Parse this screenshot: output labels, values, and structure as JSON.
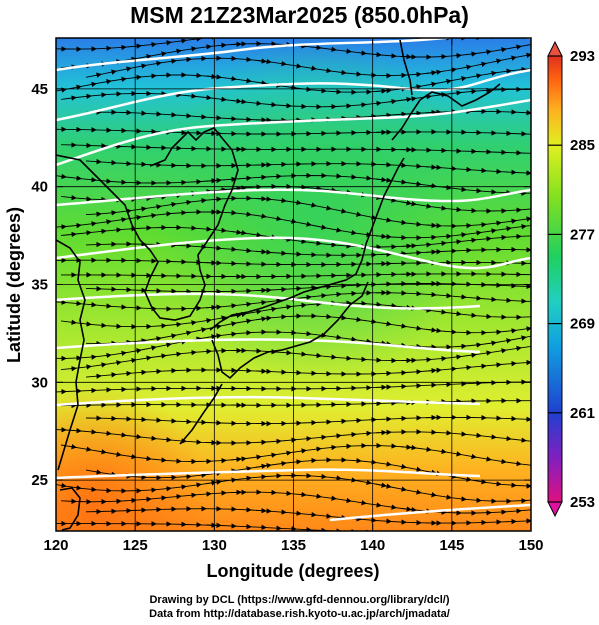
{
  "title": "MSM 21Z23Mar2025 (850.0hPa)",
  "map": {
    "x_axis_label": "Longitude (degrees)",
    "y_axis_label": "Latitude  (degrees)",
    "lon_range": [
      120,
      150
    ],
    "lat_range": [
      22.4,
      47.6
    ],
    "lon_ticks": [
      "120",
      "125",
      "130",
      "135",
      "140",
      "145",
      "150"
    ],
    "lat_ticks": [
      "25",
      "30",
      "35",
      "40",
      "45"
    ],
    "grid": true,
    "field": "temperature (K) shaded, streamlines of wind, white isotherm contours",
    "colorbar": {
      "min": 253,
      "max": 293,
      "tick_labels": [
        "293",
        "285",
        "277",
        "269",
        "261",
        "253"
      ],
      "colors": [
        "#e01080",
        "#8020c0",
        "#2040d0",
        "#10a0e0",
        "#20d0c0",
        "#20d060",
        "#80e020",
        "#e0f020",
        "#ffb020",
        "#ff6010",
        "#e03020"
      ]
    }
  },
  "credits": {
    "line1": "Drawing by DCL (https://www.gfd-dennou.org/library/dcl/)",
    "line2": "Data from http://database.rish.kyoto-u.ac.jp/arch/jmadata/"
  }
}
